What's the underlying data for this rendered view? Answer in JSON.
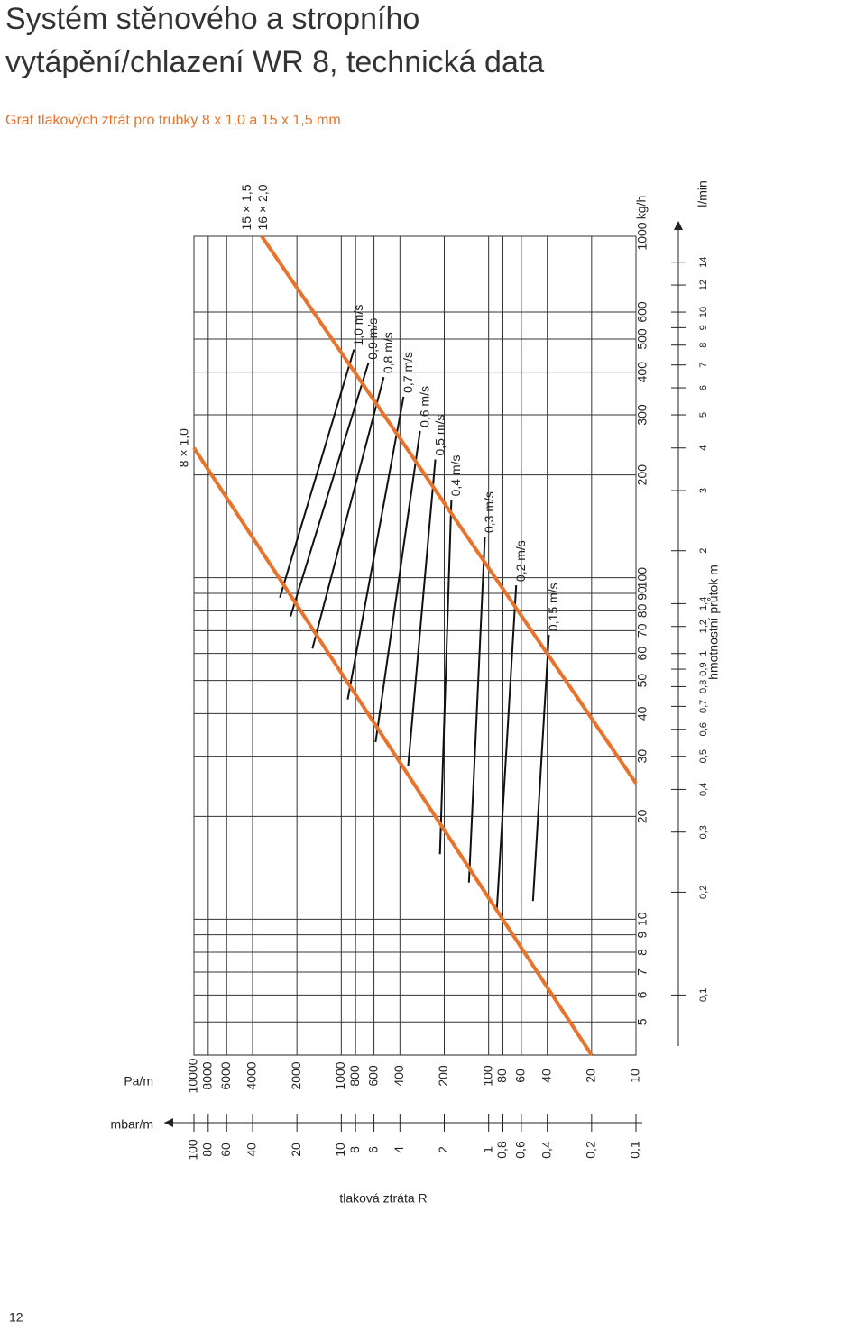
{
  "header": {
    "title_lines": [
      "Systém stěnového a stropního",
      "vytápění/chlazení WR 8, technická data"
    ],
    "subtitle": "Graf tlakových ztrát pro trubky 8 x 1,0 a 15 x 1,5 mm"
  },
  "page_number": "12",
  "chart_data": {
    "type": "line",
    "log_scale": true,
    "grid": true,
    "x_label": "Pa/m",
    "x2_label": "mbar/m",
    "x_title": "tlaková ztráta R",
    "y_label": "kg/h",
    "y2_label": "l/min",
    "y_title": "hmotnostní průtok m",
    "xlim": [
      10000,
      10
    ],
    "xticks": [
      10000,
      8000,
      6000,
      4000,
      2000,
      1000,
      800,
      600,
      400,
      200,
      100,
      80,
      60,
      40,
      20,
      10
    ],
    "x2lim": [
      100,
      0.1
    ],
    "x2ticks": [
      100,
      80,
      60,
      40,
      20,
      10,
      8,
      6,
      4,
      2,
      1,
      {
        "value": 0.8,
        "label": "0,8"
      },
      {
        "value": 0.6,
        "label": "0,6"
      },
      {
        "value": 0.4,
        "label": "0,4"
      },
      {
        "value": 0.2,
        "label": "0,2"
      },
      {
        "value": 0.1,
        "label": "0,1"
      }
    ],
    "ylim": [
      4,
      1000
    ],
    "yticks": [
      5,
      6,
      7,
      8,
      9,
      10,
      20,
      30,
      40,
      50,
      60,
      70,
      80,
      90,
      100,
      200,
      300,
      400,
      500,
      600,
      1000
    ],
    "y2lim": [
      0.0667,
      16.67
    ],
    "y2ticks": [
      {
        "value": 0.1,
        "label": "0,1"
      },
      {
        "value": 0.2,
        "label": "0,2"
      },
      {
        "value": 0.3,
        "label": "0,3"
      },
      {
        "value": 0.4,
        "label": "0,4"
      },
      {
        "value": 0.5,
        "label": "0,5"
      },
      {
        "value": 0.6,
        "label": "0,6"
      },
      {
        "value": 0.7,
        "label": "0,7"
      },
      {
        "value": 0.8,
        "label": "0,8"
      },
      {
        "value": 0.9,
        "label": "0,9"
      },
      1,
      {
        "value": 1.2,
        "label": "1,2"
      },
      {
        "value": 1.4,
        "label": "1,4"
      },
      2,
      3,
      4,
      5,
      6,
      7,
      8,
      9,
      10,
      12,
      14
    ],
    "series": [
      {
        "name": "8 × 1,0",
        "color": "#e8732c",
        "x": [
          10000,
          20
        ],
        "values": [
          240,
          4
        ]
      },
      {
        "name": "15 × 1,5",
        "name_alt": "16 × 2,0",
        "color": "#e8732c",
        "x": [
          3470,
          10
        ],
        "values": [
          1000,
          25
        ]
      }
    ],
    "velocity_lines": [
      {
        "label": "1,0 m/s",
        "x": [
          2610,
          820
        ],
        "values": [
          87.5,
          466
        ]
      },
      {
        "label": "0,9 m/s",
        "x": [
          2210,
          655
        ],
        "values": [
          77,
          425
        ]
      },
      {
        "label": "0,8 m/s",
        "x": [
          1570,
          515
        ],
        "values": [
          62,
          387
        ]
      },
      {
        "label": "0,7 m/s",
        "x": [
          905,
          378
        ],
        "values": [
          44,
          339
        ]
      },
      {
        "label": "0,6 m/s",
        "x": [
          585,
          292
        ],
        "values": [
          33,
          269
        ]
      },
      {
        "label": "0,5 m/s",
        "x": [
          352,
          230
        ],
        "values": [
          28,
          222
        ]
      },
      {
        "label": "0,4 m/s",
        "x": [
          214,
          179
        ],
        "values": [
          15.5,
          169
        ]
      },
      {
        "label": "0,3 m/s",
        "x": [
          136,
          106
        ],
        "values": [
          12.8,
          132
        ]
      },
      {
        "label": "0,2 m/s",
        "x": [
          88,
          65
        ],
        "values": [
          10.6,
          95
        ]
      },
      {
        "label": "0,15 m/s",
        "x": [
          50,
          39
        ],
        "values": [
          11.3,
          68
        ]
      }
    ]
  }
}
